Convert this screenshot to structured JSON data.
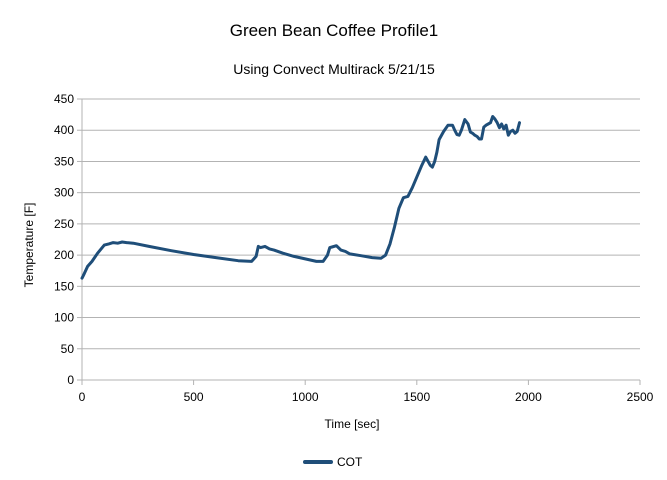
{
  "chart_data": {
    "type": "line",
    "title": "Green Bean Coffee  Profile1",
    "subtitle": "Using Convect Multirack 5/21/15",
    "xlabel": "Time [sec]",
    "ylabel": "Temperature [F]",
    "xlim": [
      0,
      2500
    ],
    "ylim": [
      0,
      450
    ],
    "xticks": [
      0,
      500,
      1000,
      1500,
      2000,
      2500
    ],
    "yticks": [
      0,
      50,
      100,
      150,
      200,
      250,
      300,
      350,
      400,
      450
    ],
    "grid": "horizontal",
    "legend_position": "bottom",
    "colors": {
      "series": "#1f4e79",
      "grid": "#b3b3b3",
      "axis": "#b3b3b3"
    },
    "series": [
      {
        "name": "COT",
        "x": [
          0,
          10,
          25,
          45,
          70,
          100,
          120,
          140,
          160,
          180,
          200,
          230,
          300,
          400,
          500,
          600,
          700,
          760,
          780,
          790,
          800,
          820,
          840,
          860,
          900,
          950,
          1000,
          1050,
          1080,
          1100,
          1110,
          1120,
          1140,
          1160,
          1180,
          1200,
          1250,
          1300,
          1340,
          1360,
          1380,
          1400,
          1420,
          1440,
          1460,
          1480,
          1500,
          1520,
          1540,
          1560,
          1570,
          1580,
          1590,
          1600,
          1620,
          1640,
          1660,
          1670,
          1680,
          1690,
          1700,
          1715,
          1730,
          1740,
          1750,
          1760,
          1770,
          1780,
          1790,
          1800,
          1810,
          1820,
          1830,
          1840,
          1850,
          1860,
          1870,
          1880,
          1890,
          1900,
          1910,
          1920,
          1930,
          1940,
          1950,
          1960
        ],
        "y": [
          163,
          170,
          182,
          190,
          203,
          216,
          218,
          220,
          219,
          221,
          220,
          219,
          214,
          207,
          201,
          196,
          191,
          190,
          198,
          214,
          212,
          214,
          210,
          208,
          203,
          198,
          194,
          190,
          190,
          200,
          212,
          213,
          215,
          208,
          206,
          202,
          199,
          196,
          195,
          200,
          218,
          245,
          275,
          292,
          294,
          308,
          325,
          342,
          357,
          344,
          341,
          350,
          365,
          385,
          398,
          408,
          408,
          400,
          393,
          392,
          400,
          417,
          410,
          397,
          395,
          392,
          390,
          386,
          386,
          405,
          408,
          410,
          412,
          422,
          418,
          412,
          404,
          410,
          402,
          408,
          392,
          398,
          400,
          395,
          398,
          412
        ]
      }
    ]
  }
}
